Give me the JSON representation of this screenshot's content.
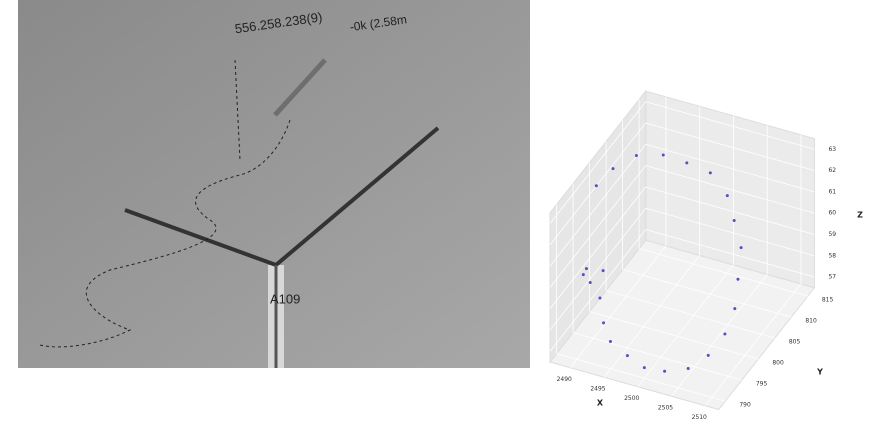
{
  "photo": {
    "overlay_text": [
      "556.258.238(9)",
      "-0k (2.58m",
      "A109"
    ]
  },
  "chart_data": {
    "type": "scatter3d",
    "x_label": "X",
    "y_label": "Y",
    "z_label": "Z",
    "color": "#5b4bc4",
    "x": [
      2488,
      2489,
      2491,
      2494,
      2497,
      2500,
      2503,
      2505,
      2507,
      2508,
      2509,
      2509,
      2508,
      2506,
      2503,
      2500,
      2497,
      2494,
      2492,
      2490,
      2489,
      2488,
      2489,
      2491
    ],
    "y": [
      800,
      803,
      806,
      808,
      809,
      810,
      809,
      807,
      805,
      802,
      799,
      796,
      793,
      791,
      790,
      790,
      791,
      792,
      794,
      797,
      800,
      797,
      794,
      792
    ],
    "z": [
      62.5,
      62.8,
      63.0,
      62.9,
      62.6,
      62.2,
      61.6,
      61.0,
      60.3,
      59.5,
      58.8,
      58.2,
      57.7,
      57.3,
      57.1,
      57.0,
      57.1,
      57.3,
      57.6,
      58.0,
      58.6,
      59.2,
      59.6,
      59.8
    ],
    "xlim": [
      2487,
      2512
    ],
    "ylim": [
      788,
      817
    ],
    "zlim": [
      56.5,
      63.5
    ],
    "xticks": [
      2490,
      2495,
      2500,
      2505,
      2510
    ],
    "yticks": [
      790,
      795,
      800,
      805,
      810,
      815
    ],
    "zticks": [
      57,
      58,
      59,
      60,
      61,
      62,
      63
    ]
  }
}
